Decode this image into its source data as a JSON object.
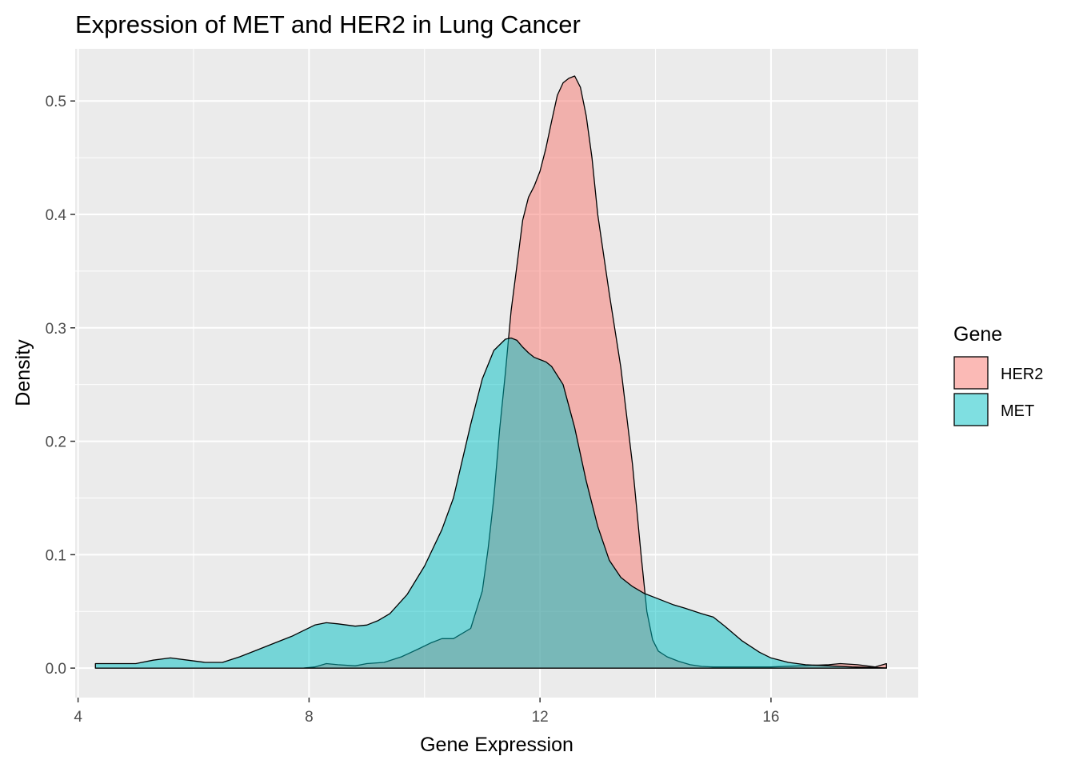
{
  "chart_data": {
    "type": "area",
    "subtype": "density",
    "title": "Expression of MET and HER2 in Lung Cancer",
    "xlabel": "Gene Expression",
    "ylabel": "Density",
    "xlim": [
      3.95,
      18.55
    ],
    "ylim": [
      -0.026,
      0.546
    ],
    "x_ticks": [
      4,
      8,
      12,
      16
    ],
    "y_ticks": [
      0.0,
      0.1,
      0.2,
      0.3,
      0.4,
      0.5
    ],
    "grid": true,
    "background": "#ebebeb",
    "legend": {
      "title": "Gene",
      "position": "right"
    },
    "series": [
      {
        "name": "HER2",
        "color": "#f8766d",
        "fill_opacity": 0.5,
        "x": [
          4.3,
          7.0,
          7.9,
          8.1,
          8.3,
          8.5,
          8.8,
          9.0,
          9.3,
          9.6,
          9.9,
          10.1,
          10.3,
          10.5,
          10.8,
          11.0,
          11.1,
          11.2,
          11.3,
          11.4,
          11.5,
          11.6,
          11.7,
          11.8,
          11.9,
          12.0,
          12.1,
          12.2,
          12.3,
          12.4,
          12.5,
          12.6,
          12.7,
          12.8,
          12.9,
          13.0,
          13.2,
          13.4,
          13.6,
          13.75,
          13.85,
          13.95,
          14.05,
          14.2,
          14.4,
          14.6,
          14.8,
          15.0,
          15.2,
          15.5,
          16.0,
          16.5,
          17.0,
          17.2,
          17.5,
          17.8,
          18.0
        ],
        "y": [
          0.0,
          0.0,
          0.0,
          0.001,
          0.004,
          0.003,
          0.002,
          0.004,
          0.005,
          0.01,
          0.017,
          0.022,
          0.026,
          0.026,
          0.035,
          0.068,
          0.105,
          0.15,
          0.21,
          0.26,
          0.315,
          0.355,
          0.395,
          0.415,
          0.425,
          0.438,
          0.458,
          0.482,
          0.505,
          0.516,
          0.52,
          0.522,
          0.512,
          0.487,
          0.45,
          0.4,
          0.33,
          0.265,
          0.18,
          0.1,
          0.05,
          0.025,
          0.015,
          0.01,
          0.006,
          0.003,
          0.0015,
          0.001,
          0.001,
          0.001,
          0.001,
          0.002,
          0.003,
          0.004,
          0.003,
          0.001,
          0.004
        ]
      },
      {
        "name": "MET",
        "color": "#00bfc4",
        "fill_opacity": 0.5,
        "x": [
          4.3,
          4.6,
          5.0,
          5.3,
          5.6,
          5.9,
          6.2,
          6.5,
          6.8,
          7.1,
          7.4,
          7.7,
          7.9,
          8.1,
          8.3,
          8.5,
          8.8,
          9.0,
          9.2,
          9.4,
          9.7,
          10.0,
          10.3,
          10.5,
          10.8,
          11.0,
          11.2,
          11.4,
          11.5,
          11.6,
          11.7,
          11.8,
          11.9,
          12.0,
          12.1,
          12.2,
          12.4,
          12.6,
          12.8,
          13.0,
          13.2,
          13.4,
          13.6,
          13.8,
          14.0,
          14.3,
          14.5,
          14.8,
          15.0,
          15.2,
          15.5,
          15.8,
          16.0,
          16.3,
          16.6,
          17.0,
          17.4,
          17.8,
          18.0
        ],
        "y": [
          0.004,
          0.004,
          0.004,
          0.007,
          0.009,
          0.007,
          0.005,
          0.005,
          0.01,
          0.016,
          0.022,
          0.028,
          0.033,
          0.038,
          0.04,
          0.039,
          0.037,
          0.038,
          0.042,
          0.048,
          0.065,
          0.09,
          0.122,
          0.15,
          0.215,
          0.255,
          0.28,
          0.29,
          0.291,
          0.289,
          0.283,
          0.278,
          0.274,
          0.272,
          0.27,
          0.266,
          0.25,
          0.212,
          0.165,
          0.125,
          0.095,
          0.08,
          0.072,
          0.066,
          0.062,
          0.056,
          0.053,
          0.048,
          0.045,
          0.037,
          0.024,
          0.014,
          0.009,
          0.005,
          0.003,
          0.002,
          0.001,
          0.0005,
          0.0002
        ]
      }
    ]
  }
}
